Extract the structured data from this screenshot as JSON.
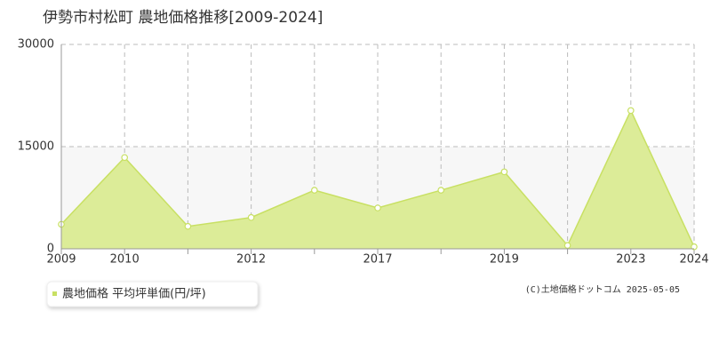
{
  "chart_data": {
    "type": "area",
    "title": "伊勢市村松町 農地価格推移[2009-2024]",
    "categories": [
      "2009",
      "2010",
      null,
      "2012",
      null,
      "2017",
      null,
      "2019",
      null,
      "2023",
      "2024"
    ],
    "series": [
      {
        "name": "農地価格 平均坪単価(円/坪)",
        "color": "#c8e063",
        "fill": "#dcec98",
        "values": [
          3600,
          13400,
          3300,
          4600,
          8600,
          6000,
          8600,
          11300,
          500,
          20300,
          300
        ]
      }
    ],
    "ylim": [
      0,
      30000
    ],
    "yticks": [
      0,
      15000,
      30000
    ],
    "grid": true,
    "copyright": "(C)土地価格ドットコム 2025-05-05"
  }
}
